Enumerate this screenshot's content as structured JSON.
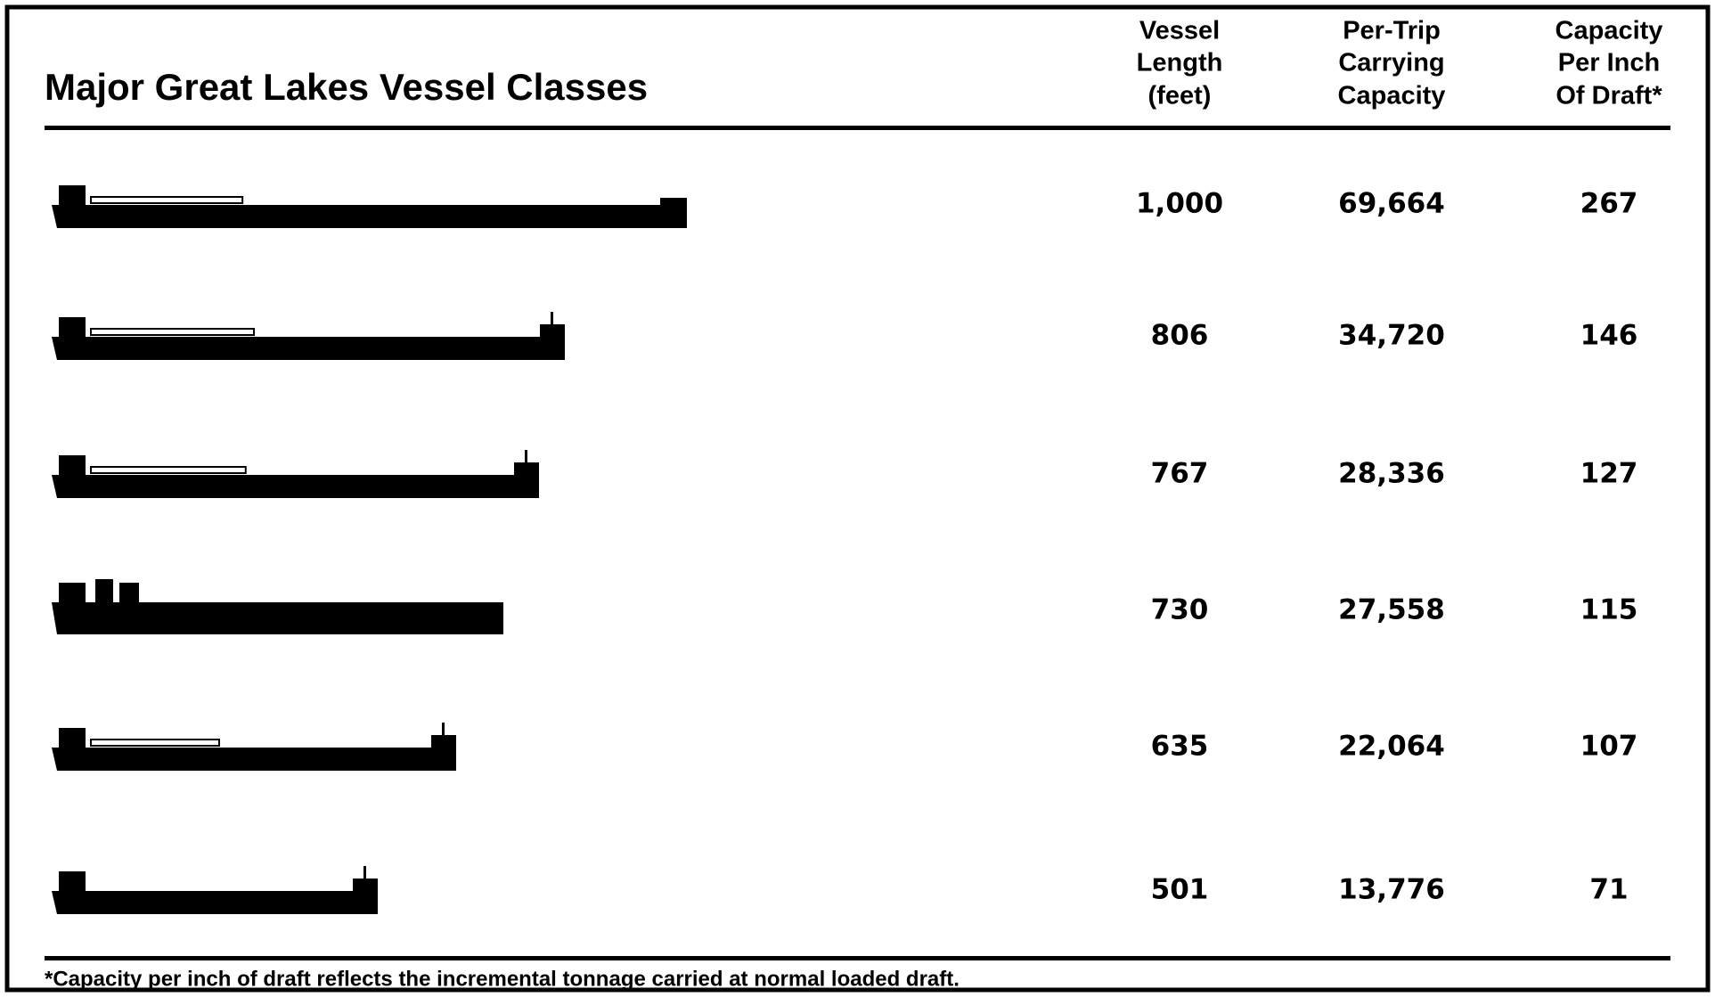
{
  "header": {
    "title": "Major Great Lakes Vessel Classes"
  },
  "columns": [
    [
      "Vessel",
      "Length",
      "(feet)"
    ],
    [
      "Per-Trip",
      "Carrying",
      "Capacity"
    ],
    [
      "Capacity",
      "Per Inch",
      "Of Draft*"
    ]
  ],
  "table": {
    "rows": [
      [
        "1,000",
        "69,664",
        "267"
      ],
      [
        "806",
        "34,720",
        "146"
      ],
      [
        "767",
        "28,336",
        "127"
      ],
      [
        "730",
        "27,558",
        "115"
      ],
      [
        "635",
        "22,064",
        "107"
      ],
      [
        "501",
        "13,776",
        "71"
      ]
    ]
  },
  "footnote": "*Capacity per inch of draft reflects the incremental tonnage carried at normal loaded draft."
}
